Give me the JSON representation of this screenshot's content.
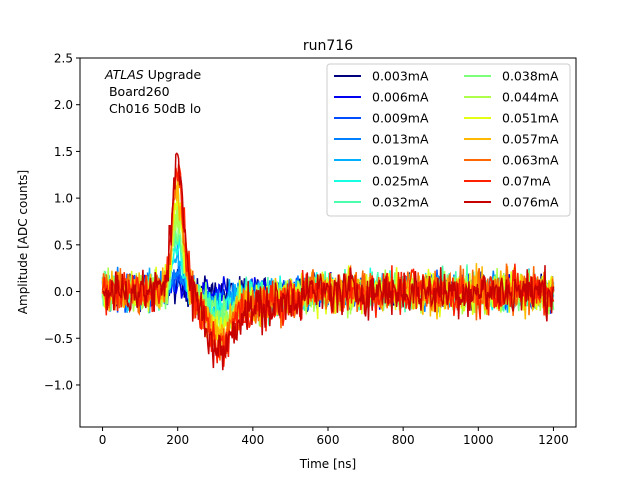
{
  "chart_data": {
    "type": "line",
    "title": "run716",
    "xlabel": "Time [ns]",
    "ylabel": "Amplitude [ADC counts]",
    "xlim": [
      -60,
      1260
    ],
    "ylim": [
      -1.45,
      2.5
    ],
    "xticks": [
      0,
      200,
      400,
      600,
      800,
      1000,
      1200
    ],
    "yticks": [
      -1.0,
      -0.5,
      0.0,
      0.5,
      1.0,
      1.5,
      2.0,
      2.5
    ],
    "ytick_labels": [
      "−1.0",
      "−0.5",
      "0.0",
      "0.5",
      "1.0",
      "1.5",
      "2.0",
      "2.5"
    ],
    "grid": false,
    "legend_placement": "upper-right",
    "legend_columns": 2,
    "annotation": {
      "italic": "ATLAS",
      "rest": " Upgrade",
      "line2": " Board260",
      "line3": " Ch016 50dB lo"
    },
    "x_range_data": [
      0,
      1200
    ],
    "pulse_peak_time": 200,
    "pulse_undershoot_time": 310,
    "series": [
      {
        "name": "0.003mA",
        "color": "#00007f",
        "peak": 0.05,
        "noise": 0.12
      },
      {
        "name": "0.006mA",
        "color": "#0000f1",
        "peak": 0.1,
        "noise": 0.12
      },
      {
        "name": "0.009mA",
        "color": "#004cff",
        "peak": 0.16,
        "noise": 0.13
      },
      {
        "name": "0.013mA",
        "color": "#0080ff",
        "peak": 0.24,
        "noise": 0.13
      },
      {
        "name": "0.019mA",
        "color": "#00b0ff",
        "peak": 0.36,
        "noise": 0.13
      },
      {
        "name": "0.025mA",
        "color": "#16ffe1",
        "peak": 0.48,
        "noise": 0.14
      },
      {
        "name": "0.032mA",
        "color": "#49ffad",
        "peak": 0.62,
        "noise": 0.14
      },
      {
        "name": "0.038mA",
        "color": "#7dff7a",
        "peak": 0.74,
        "noise": 0.15
      },
      {
        "name": "0.044mA",
        "color": "#adff49",
        "peak": 0.86,
        "noise": 0.15
      },
      {
        "name": "0.051mA",
        "color": "#e4ff13",
        "peak": 1.0,
        "noise": 0.16
      },
      {
        "name": "0.057mA",
        "color": "#ffb900",
        "peak": 1.12,
        "noise": 0.16
      },
      {
        "name": "0.063mA",
        "color": "#ff6800",
        "peak": 1.24,
        "noise": 0.17
      },
      {
        "name": "0.07mA",
        "color": "#ff2000",
        "peak": 1.37,
        "noise": 0.17
      },
      {
        "name": "0.076mA",
        "color": "#c70000",
        "peak": 1.5,
        "noise": 0.18
      }
    ]
  }
}
